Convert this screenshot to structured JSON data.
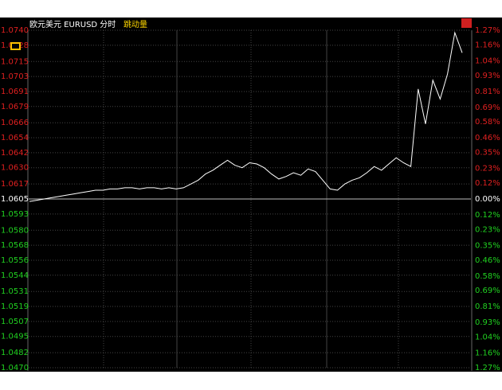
{
  "chart_data": {
    "type": "line",
    "title": "欧元美元 EURUSD 分时",
    "subtitle": "跳动量",
    "series": [
      {
        "color": "#ffffff",
        "values": [
          1.0603,
          1.0604,
          1.0605,
          1.0606,
          1.0607,
          1.0608,
          1.0609,
          1.061,
          1.0611,
          1.0612,
          1.0612,
          1.0613,
          1.0613,
          1.0614,
          1.0614,
          1.0613,
          1.0614,
          1.0614,
          1.0613,
          1.0614,
          1.0613,
          1.0614,
          1.0617,
          1.062,
          1.0625,
          1.0628,
          1.0632,
          1.0636,
          1.0632,
          1.063,
          1.0634,
          1.0633,
          1.063,
          1.0625,
          1.0621,
          1.0623,
          1.0626,
          1.0624,
          1.0629,
          1.0627,
          1.062,
          1.0613,
          1.0612,
          1.0617,
          1.062,
          1.0622,
          1.0626,
          1.0631,
          1.0628,
          1.0633,
          1.0638,
          1.0634,
          1.0631,
          1.0693,
          1.0665,
          1.07,
          1.0685,
          1.0705,
          1.0738,
          1.0722
        ]
      }
    ],
    "ylim": [
      1.047,
      1.074
    ],
    "yticks": [
      {
        "value": 1.074,
        "label": "1.0740"
      },
      1.0728,
      1.0715,
      1.0703,
      1.0691,
      1.0679,
      1.0666,
      1.0654,
      1.0642,
      {
        "value": 1.063,
        "label": "1.0630"
      },
      1.0617,
      1.0605,
      1.0593,
      {
        "value": 1.058,
        "label": "1.0580"
      },
      1.0568,
      1.0556,
      1.0544,
      1.0531,
      1.0519,
      1.0507,
      1.0495,
      1.0482,
      {
        "value": 1.047,
        "label": "1.0470"
      }
    ],
    "y2lim": [
      -1.27,
      1.27
    ],
    "y2ticks": [
      {
        "value": 1.27,
        "label": "1.27%"
      },
      {
        "value": 1.16,
        "label": "1.16%"
      },
      {
        "value": 1.04,
        "label": "1.04%"
      },
      {
        "value": 0.93,
        "label": "0.93%"
      },
      {
        "value": 0.81,
        "label": "0.81%"
      },
      {
        "value": 0.69,
        "label": "0.69%"
      },
      {
        "value": 0.58,
        "label": "0.58%"
      },
      {
        "value": 0.46,
        "label": "0.46%"
      },
      {
        "value": 0.35,
        "label": "0.35%"
      },
      {
        "value": 0.23,
        "label": "0.23%"
      },
      {
        "value": 0.12,
        "label": "0.12%"
      },
      {
        "value": 0,
        "label": "0.00%"
      },
      {
        "value": -0.12,
        "label": "0.12%"
      },
      {
        "value": -0.23,
        "label": "0.23%"
      },
      {
        "value": -0.35,
        "label": "0.35%"
      },
      {
        "value": -0.46,
        "label": "0.46%"
      },
      {
        "value": -0.58,
        "label": "0.58%"
      },
      {
        "value": -0.69,
        "label": "0.69%"
      },
      {
        "value": -0.81,
        "label": "0.81%"
      },
      {
        "value": -0.93,
        "label": "0.93%"
      },
      {
        "value": -1.04,
        "label": "1.04%"
      },
      {
        "value": -1.16,
        "label": "1.16%"
      },
      {
        "value": -1.27,
        "label": "1.27%"
      }
    ],
    "up_color": "#e02020",
    "down_color": "#20d020",
    "flat_color": "#ffffff",
    "grid": true
  }
}
